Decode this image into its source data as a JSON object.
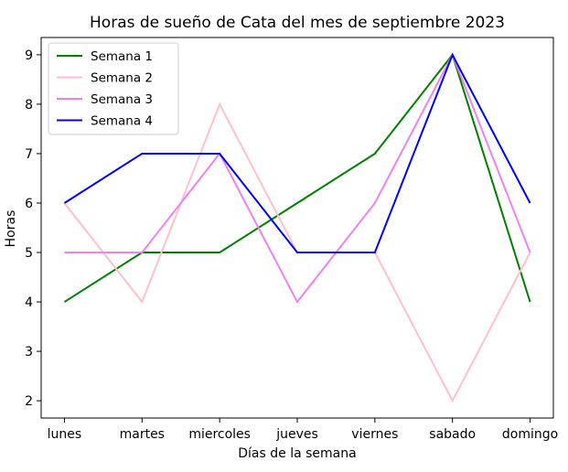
{
  "chart_data": {
    "type": "line",
    "title": "Horas de sueño de Cata del mes de septiembre 2023",
    "xlabel": "Días de la semana",
    "ylabel": "Horas",
    "categories": [
      "lunes",
      "martes",
      "miercoles",
      "jueves",
      "viernes",
      "sabado",
      "domingo"
    ],
    "ylim": [
      1.65,
      9.35
    ],
    "yticks": [
      2,
      3,
      4,
      5,
      6,
      7,
      8,
      9
    ],
    "grid": false,
    "legend_position": "top-left",
    "series": [
      {
        "name": "Semana 1",
        "color": "#008000",
        "values": [
          4,
          5,
          5,
          6,
          7,
          9,
          4
        ]
      },
      {
        "name": "Semana 2",
        "color": "#ffc0cb",
        "values": [
          6,
          4,
          8,
          5,
          5,
          2,
          5
        ]
      },
      {
        "name": "Semana 3",
        "color": "#ee82ee",
        "values": [
          5,
          5,
          7,
          4,
          6,
          9,
          5
        ]
      },
      {
        "name": "Semana 4",
        "color": "#0000ff",
        "values": [
          6,
          7,
          7,
          5,
          5,
          9,
          6
        ]
      }
    ]
  }
}
